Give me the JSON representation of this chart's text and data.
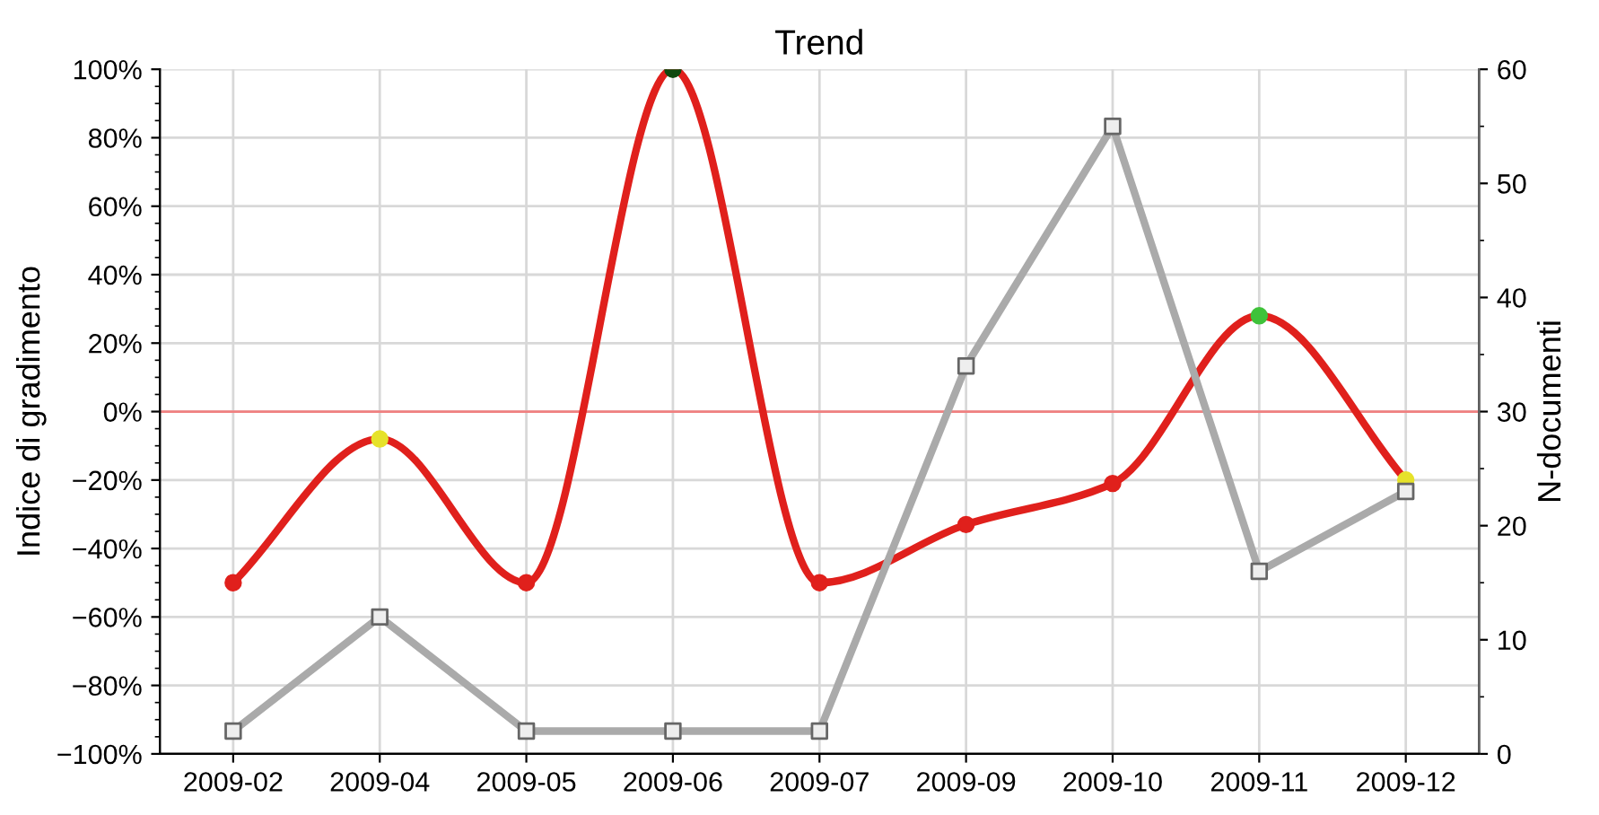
{
  "chart_data": {
    "type": "line",
    "title": "Trend",
    "ylabel": "Indice di gradimento",
    "y2label": "N-documenti",
    "categories": [
      "2009-02",
      "2009-04",
      "2009-05",
      "2009-06",
      "2009-07",
      "2009-09",
      "2009-10",
      "2009-11",
      "2009-12"
    ],
    "series": [
      {
        "type": "line",
        "color": "#e0201c",
        "colors": [
          "#e0201c",
          "#e6e22a",
          "#e0201c",
          "#0f4a0f",
          "#e0201c",
          "#e0201c",
          "#e0201c",
          "#3fc23a",
          "#e6e22a"
        ],
        "marker": "circle",
        "values": [
          -50,
          -8,
          -50,
          100,
          -50,
          -33,
          -21,
          28,
          -20
        ]
      },
      {
        "type": "line",
        "axis": "y2",
        "color": "#aaaaaa",
        "marker": "square",
        "values": [
          2,
          12,
          2,
          2,
          2,
          34,
          55,
          16,
          23
        ]
      }
    ],
    "ylim": [
      -100,
      100
    ],
    "yticks": [
      {
        "value": -100,
        "label": "−100%"
      },
      {
        "value": -80,
        "label": "−80%"
      },
      {
        "value": -60,
        "label": "−60%"
      },
      {
        "value": -40,
        "label": "−40%"
      },
      {
        "value": -20,
        "label": "−20%"
      },
      {
        "value": 0,
        "label": "0%"
      },
      {
        "value": 20,
        "label": "20%"
      },
      {
        "value": 40,
        "label": "40%"
      },
      {
        "value": 60,
        "label": "60%"
      },
      {
        "value": 80,
        "label": "80%"
      },
      {
        "value": 100,
        "label": "100%"
      }
    ],
    "y2lim": [
      0,
      60
    ],
    "y2ticks": [
      0,
      10,
      20,
      30,
      40,
      50,
      60
    ],
    "ref_lines": [
      {
        "axis": "y",
        "value": 0,
        "color": "#f08080"
      }
    ],
    "grid": true
  }
}
